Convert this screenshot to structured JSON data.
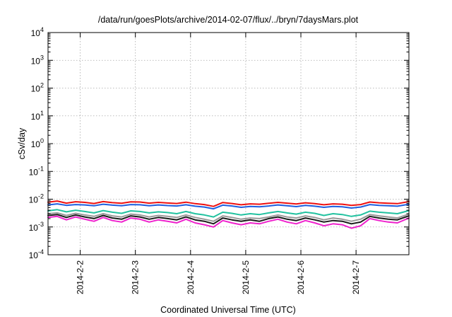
{
  "chart_data": {
    "type": "line",
    "title": "/data/run/goesPlots/archive/2014-02-07/flux/../bryn/7daysMars.plot",
    "xlabel": "Coordinated Universal Time (UTC)",
    "ylabel": "cSv/day",
    "yscale": "log",
    "ylim": [
      0.0001,
      10000
    ],
    "xlim": [
      "2014-02-01T10:00",
      "2014-02-07T23:00"
    ],
    "x_ticks": [
      {
        "x": "2014-02-02",
        "label": "2014-2-2"
      },
      {
        "x": "2014-02-03",
        "label": "2014-2-3"
      },
      {
        "x": "2014-02-04",
        "label": "2014-2-4"
      },
      {
        "x": "2014-02-05",
        "label": "2014-2-5"
      },
      {
        "x": "2014-02-06",
        "label": "2014-2-6"
      },
      {
        "x": "2014-02-07",
        "label": "2014-2-7"
      }
    ],
    "y_ticks": [
      {
        "exp": -4,
        "base": "10",
        "sup": "-4"
      },
      {
        "exp": -3,
        "base": "10",
        "sup": "-3"
      },
      {
        "exp": -2,
        "base": "10",
        "sup": "-2"
      },
      {
        "exp": -1,
        "base": "10",
        "sup": "-1"
      },
      {
        "exp": 0,
        "base": "10",
        "sup": "0"
      },
      {
        "exp": 1,
        "base": "10",
        "sup": "1"
      },
      {
        "exp": 2,
        "base": "10",
        "sup": "2"
      },
      {
        "exp": 3,
        "base": "10",
        "sup": "3"
      },
      {
        "exp": 4,
        "base": "10",
        "sup": "4"
      }
    ],
    "grid": true,
    "x": [
      "2014-02-01T10:00",
      "2014-02-01T14:00",
      "2014-02-01T18:00",
      "2014-02-01T22:00",
      "2014-02-02T02:00",
      "2014-02-02T06:00",
      "2014-02-02T10:00",
      "2014-02-02T14:00",
      "2014-02-02T18:00",
      "2014-02-02T22:00",
      "2014-02-03T02:00",
      "2014-02-03T06:00",
      "2014-02-03T10:00",
      "2014-02-03T14:00",
      "2014-02-03T18:00",
      "2014-02-03T22:00",
      "2014-02-04T02:00",
      "2014-02-04T06:00",
      "2014-02-04T10:00",
      "2014-02-04T14:00",
      "2014-02-04T18:00",
      "2014-02-04T22:00",
      "2014-02-05T02:00",
      "2014-02-05T06:00",
      "2014-02-05T10:00",
      "2014-02-05T14:00",
      "2014-02-05T18:00",
      "2014-02-05T22:00",
      "2014-02-06T02:00",
      "2014-02-06T06:00",
      "2014-02-06T10:00",
      "2014-02-06T14:00",
      "2014-02-06T18:00",
      "2014-02-06T22:00",
      "2014-02-07T02:00",
      "2014-02-07T06:00",
      "2014-02-07T10:00",
      "2014-02-07T14:00",
      "2014-02-07T18:00",
      "2014-02-07T23:00"
    ],
    "series": [
      {
        "color": "#ee1111",
        "values": [
          0.0078,
          0.0086,
          0.0072,
          0.0081,
          0.0077,
          0.007,
          0.0082,
          0.0075,
          0.0071,
          0.008,
          0.0079,
          0.0072,
          0.0077,
          0.0073,
          0.007,
          0.0078,
          0.0069,
          0.0064,
          0.0055,
          0.0076,
          0.007,
          0.0063,
          0.0068,
          0.0066,
          0.0071,
          0.0077,
          0.0072,
          0.0067,
          0.0074,
          0.0069,
          0.0063,
          0.0068,
          0.0066,
          0.006,
          0.0064,
          0.0079,
          0.0074,
          0.0071,
          0.0069,
          0.0082
        ]
      },
      {
        "color": "#1f5fe0",
        "values": [
          0.0062,
          0.0068,
          0.006,
          0.0064,
          0.0062,
          0.0058,
          0.0066,
          0.0061,
          0.0058,
          0.0064,
          0.0063,
          0.0058,
          0.0062,
          0.0059,
          0.0057,
          0.0063,
          0.0056,
          0.0052,
          0.0045,
          0.0061,
          0.0057,
          0.0051,
          0.0055,
          0.0053,
          0.0057,
          0.0062,
          0.0058,
          0.0054,
          0.006,
          0.0056,
          0.0051,
          0.0055,
          0.0053,
          0.0048,
          0.0052,
          0.0064,
          0.006,
          0.0058,
          0.0056,
          0.0066
        ]
      },
      {
        "color": "#22c2a0",
        "values": [
          0.0038,
          0.0042,
          0.0035,
          0.004,
          0.0036,
          0.0032,
          0.0039,
          0.0034,
          0.0031,
          0.0038,
          0.0036,
          0.0032,
          0.0035,
          0.0033,
          0.003,
          0.0036,
          0.003,
          0.0027,
          0.0023,
          0.0034,
          0.0031,
          0.0027,
          0.003,
          0.0028,
          0.0032,
          0.0036,
          0.0032,
          0.0029,
          0.0034,
          0.0031,
          0.0026,
          0.003,
          0.0028,
          0.0024,
          0.0027,
          0.0037,
          0.0034,
          0.0032,
          0.003,
          0.0039
        ]
      },
      {
        "color": "#999999",
        "values": [
          0.003,
          0.0032,
          0.0026,
          0.0031,
          0.0027,
          0.0024,
          0.003,
          0.0025,
          0.0023,
          0.0029,
          0.0027,
          0.0023,
          0.0026,
          0.0024,
          0.0022,
          0.0027,
          0.0022,
          0.0019,
          0.0016,
          0.0025,
          0.0022,
          0.0019,
          0.0021,
          0.002,
          0.0023,
          0.0027,
          0.0023,
          0.0021,
          0.0025,
          0.0022,
          0.0018,
          0.0021,
          0.0019,
          0.0016,
          0.0019,
          0.0028,
          0.0025,
          0.0023,
          0.0021,
          0.0029
        ]
      },
      {
        "color": "#1a1a1a",
        "values": [
          0.0026,
          0.0028,
          0.0022,
          0.0027,
          0.0023,
          0.002,
          0.0026,
          0.0021,
          0.0019,
          0.0025,
          0.0023,
          0.0019,
          0.0022,
          0.002,
          0.0018,
          0.0023,
          0.0018,
          0.0016,
          0.0013,
          0.0021,
          0.0018,
          0.0016,
          0.0018,
          0.0016,
          0.002,
          0.0023,
          0.0019,
          0.0017,
          0.0021,
          0.0018,
          0.0015,
          0.0017,
          0.0016,
          0.0013,
          0.0015,
          0.0024,
          0.0021,
          0.0019,
          0.0018,
          0.0025
        ]
      },
      {
        "color": "#ee22cc",
        "values": [
          0.0022,
          0.0024,
          0.0018,
          0.0023,
          0.0019,
          0.0016,
          0.0022,
          0.0017,
          0.0015,
          0.0021,
          0.0019,
          0.0015,
          0.0018,
          0.0016,
          0.0014,
          0.0019,
          0.0014,
          0.0012,
          0.001,
          0.0017,
          0.0014,
          0.0012,
          0.0014,
          0.0013,
          0.0016,
          0.0019,
          0.0015,
          0.0013,
          0.0017,
          0.0014,
          0.0011,
          0.0013,
          0.0012,
          0.0009,
          0.0011,
          0.002,
          0.0017,
          0.0015,
          0.0014,
          0.0021
        ]
      }
    ]
  }
}
